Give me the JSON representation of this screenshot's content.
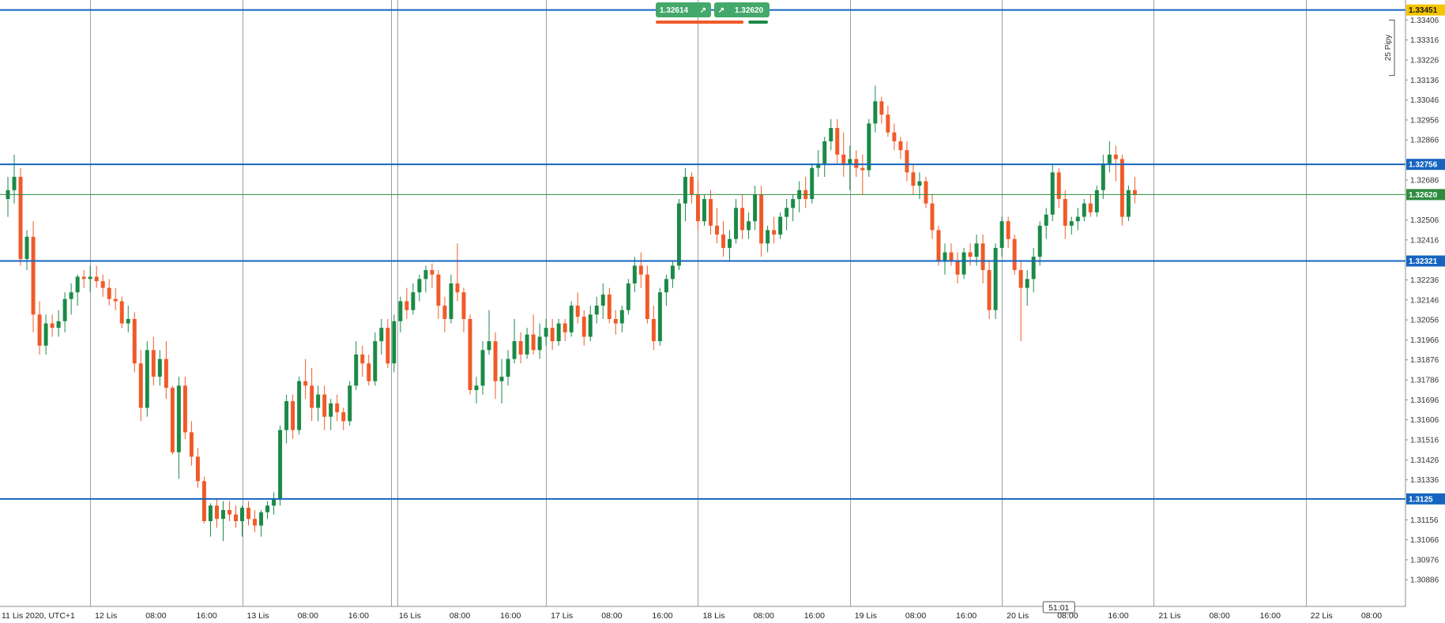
{
  "chart_data": {
    "type": "candlestick",
    "instrument_timezone_label": "11 Lis 2020, UTC+1",
    "y_axis": {
      "min": 1.30766,
      "max": 1.33496,
      "tick_labels": [
        "1.30886",
        "1.30976",
        "1.31066",
        "1.31156",
        "1.31336",
        "1.31426",
        "1.31516",
        "1.31606",
        "1.31696",
        "1.31786",
        "1.31876",
        "1.31966",
        "1.32056",
        "1.32146",
        "1.32236",
        "1.32416",
        "1.32506",
        "1.32686",
        "1.32866",
        "1.32956",
        "1.33046",
        "1.33136",
        "1.33226",
        "1.33316",
        "1.33406"
      ]
    },
    "x_axis": {
      "bars_per_hour": 1,
      "x_range_bars": [
        0,
        222
      ],
      "tick_labels": [
        {
          "bar": 0,
          "text": "11 Lis 2020, UTC+1"
        },
        {
          "bar": 13,
          "text": "12 Lis"
        },
        {
          "bar": 21,
          "text": "08:00"
        },
        {
          "bar": 29,
          "text": "16:00"
        },
        {
          "bar": 37,
          "text": "13 Lis"
        },
        {
          "bar": 45,
          "text": "08:00"
        },
        {
          "bar": 53,
          "text": "16:00"
        },
        {
          "bar": 61,
          "text": "16 Lis"
        },
        {
          "bar": 69,
          "text": "08:00"
        },
        {
          "bar": 77,
          "text": "16:00"
        },
        {
          "bar": 85,
          "text": "17 Lis"
        },
        {
          "bar": 93,
          "text": "08:00"
        },
        {
          "bar": 101,
          "text": "16:00"
        },
        {
          "bar": 109,
          "text": "18 Lis"
        },
        {
          "bar": 117,
          "text": "08:00"
        },
        {
          "bar": 125,
          "text": "16:00"
        },
        {
          "bar": 133,
          "text": "19 Lis"
        },
        {
          "bar": 141,
          "text": "08:00"
        },
        {
          "bar": 149,
          "text": "16:00"
        },
        {
          "bar": 157,
          "text": "20 Lis"
        },
        {
          "bar": 165,
          "text": "08:00"
        },
        {
          "bar": 173,
          "text": "16:00"
        },
        {
          "bar": 181,
          "text": "21 Lis"
        },
        {
          "bar": 189,
          "text": "08:00"
        },
        {
          "bar": 197,
          "text": "16:00"
        },
        {
          "bar": 205,
          "text": "22 Lis"
        },
        {
          "bar": 213,
          "text": "08:00"
        }
      ],
      "day_separators": [
        13,
        37,
        60.5,
        61.5,
        85,
        109,
        133,
        157,
        181,
        205
      ]
    },
    "horizontal_lines": [
      {
        "price": 1.33451,
        "label": "1.33451",
        "color": "#1565c0",
        "tag_bg": "#f5c400",
        "tag_fg": "#1a1a1a"
      },
      {
        "price": 1.32756,
        "label": "1.32756",
        "color": "#1565c0",
        "tag_bg": "#1565c0",
        "tag_fg": "#ffffff"
      },
      {
        "price": 1.32321,
        "label": "1.32321",
        "color": "#1565c0",
        "tag_bg": "#1565c0",
        "tag_fg": "#ffffff"
      },
      {
        "price": 1.3125,
        "label": "1.3125",
        "color": "#1565c0",
        "tag_bg": "#1565c0",
        "tag_fg": "#ffffff"
      }
    ],
    "current_price": {
      "price": 1.3262,
      "label": "1.32620",
      "color": "#2e8b3e"
    },
    "countdown_label": "51:01",
    "countdown_bar": 166,
    "pip_ruler": {
      "label": "25 Pipy",
      "price_top": 1.33406,
      "price_bottom": 1.33156
    },
    "colors": {
      "up": "#1a8a47",
      "down": "#f05a28",
      "grid": "#9e9e9e",
      "axis_bg": "#ffffff"
    },
    "candles": [
      [
        1.326,
        1.327,
        1.3252,
        1.3264
      ],
      [
        1.3264,
        1.328,
        1.3258,
        1.327
      ],
      [
        1.327,
        1.3274,
        1.323,
        1.3233
      ],
      [
        1.3233,
        1.3246,
        1.3228,
        1.3243
      ],
      [
        1.3243,
        1.325,
        1.32,
        1.3208
      ],
      [
        1.3208,
        1.3214,
        1.319,
        1.3194
      ],
      [
        1.3194,
        1.3208,
        1.319,
        1.3204
      ],
      [
        1.3204,
        1.3208,
        1.3198,
        1.3202
      ],
      [
        1.3202,
        1.321,
        1.3198,
        1.3205
      ],
      [
        1.3205,
        1.3218,
        1.32,
        1.3215
      ],
      [
        1.3215,
        1.3222,
        1.3208,
        1.3218
      ],
      [
        1.3218,
        1.3226,
        1.3212,
        1.3225
      ],
      [
        1.3225,
        1.3228,
        1.322,
        1.3224
      ],
      [
        1.3224,
        1.323,
        1.3218,
        1.3225
      ],
      [
        1.3225,
        1.323,
        1.322,
        1.3223
      ],
      [
        1.3223,
        1.3226,
        1.3216,
        1.322
      ],
      [
        1.322,
        1.3224,
        1.3212,
        1.3215
      ],
      [
        1.3215,
        1.322,
        1.321,
        1.3214
      ],
      [
        1.3214,
        1.3216,
        1.3202,
        1.3204
      ],
      [
        1.3204,
        1.3212,
        1.32,
        1.3206
      ],
      [
        1.3206,
        1.3209,
        1.3182,
        1.3186
      ],
      [
        1.3186,
        1.3192,
        1.316,
        1.3166
      ],
      [
        1.3166,
        1.3196,
        1.3162,
        1.3192
      ],
      [
        1.3192,
        1.3198,
        1.3176,
        1.318
      ],
      [
        1.318,
        1.3192,
        1.3176,
        1.3188
      ],
      [
        1.3188,
        1.3196,
        1.317,
        1.3175
      ],
      [
        1.3175,
        1.3176,
        1.3145,
        1.3146
      ],
      [
        1.3146,
        1.318,
        1.3134,
        1.3176
      ],
      [
        1.3176,
        1.318,
        1.3152,
        1.3155
      ],
      [
        1.3155,
        1.316,
        1.314,
        1.3144
      ],
      [
        1.3144,
        1.3148,
        1.313,
        1.3133
      ],
      [
        1.3133,
        1.3135,
        1.3114,
        1.3115
      ],
      [
        1.3115,
        1.3123,
        1.3108,
        1.3122
      ],
      [
        1.3122,
        1.3125,
        1.3112,
        1.3116
      ],
      [
        1.3116,
        1.3124,
        1.3106,
        1.312
      ],
      [
        1.312,
        1.3124,
        1.3115,
        1.3118
      ],
      [
        1.3118,
        1.3122,
        1.3112,
        1.3115
      ],
      [
        1.3115,
        1.3122,
        1.3108,
        1.3121
      ],
      [
        1.3121,
        1.3124,
        1.3113,
        1.3116
      ],
      [
        1.3116,
        1.312,
        1.311,
        1.3113
      ],
      [
        1.3113,
        1.312,
        1.3108,
        1.3119
      ],
      [
        1.3119,
        1.3124,
        1.3116,
        1.3122
      ],
      [
        1.3122,
        1.3128,
        1.3118,
        1.3125
      ],
      [
        1.3125,
        1.3158,
        1.3122,
        1.3156
      ],
      [
        1.3156,
        1.3172,
        1.315,
        1.3169
      ],
      [
        1.3169,
        1.3172,
        1.3152,
        1.3156
      ],
      [
        1.3156,
        1.318,
        1.3154,
        1.3178
      ],
      [
        1.3178,
        1.3188,
        1.317,
        1.3176
      ],
      [
        1.3176,
        1.3184,
        1.316,
        1.3166
      ],
      [
        1.3166,
        1.3176,
        1.316,
        1.3172
      ],
      [
        1.3172,
        1.3176,
        1.3156,
        1.3162
      ],
      [
        1.3162,
        1.317,
        1.3156,
        1.3168
      ],
      [
        1.3168,
        1.3172,
        1.316,
        1.3164
      ],
      [
        1.3164,
        1.3166,
        1.3156,
        1.316
      ],
      [
        1.316,
        1.3178,
        1.3158,
        1.3176
      ],
      [
        1.3176,
        1.3196,
        1.3174,
        1.319
      ],
      [
        1.319,
        1.3194,
        1.318,
        1.3186
      ],
      [
        1.3186,
        1.319,
        1.3176,
        1.3178
      ],
      [
        1.3178,
        1.32,
        1.3176,
        1.3196
      ],
      [
        1.3196,
        1.3206,
        1.319,
        1.3202
      ],
      [
        1.3202,
        1.3206,
        1.3184,
        1.3186
      ],
      [
        1.3186,
        1.3208,
        1.3182,
        1.3205
      ],
      [
        1.3205,
        1.3216,
        1.32,
        1.3214
      ],
      [
        1.3214,
        1.322,
        1.3206,
        1.321
      ],
      [
        1.321,
        1.3222,
        1.3208,
        1.3218
      ],
      [
        1.3218,
        1.3226,
        1.3214,
        1.3224
      ],
      [
        1.3224,
        1.323,
        1.3218,
        1.3228
      ],
      [
        1.3228,
        1.3231,
        1.322,
        1.3226
      ],
      [
        1.3226,
        1.3228,
        1.3206,
        1.3212
      ],
      [
        1.3212,
        1.3216,
        1.32,
        1.3206
      ],
      [
        1.3206,
        1.3226,
        1.3204,
        1.3222
      ],
      [
        1.3222,
        1.324,
        1.3214,
        1.3218
      ],
      [
        1.3218,
        1.322,
        1.32,
        1.3206
      ],
      [
        1.3206,
        1.3208,
        1.3172,
        1.3174
      ],
      [
        1.3174,
        1.318,
        1.3168,
        1.3176
      ],
      [
        1.3176,
        1.3196,
        1.3172,
        1.3192
      ],
      [
        1.3192,
        1.321,
        1.319,
        1.3196
      ],
      [
        1.3196,
        1.32,
        1.317,
        1.3178
      ],
      [
        1.3178,
        1.3188,
        1.3168,
        1.318
      ],
      [
        1.318,
        1.3192,
        1.3176,
        1.3188
      ],
      [
        1.3188,
        1.3206,
        1.3186,
        1.3196
      ],
      [
        1.3196,
        1.32,
        1.3186,
        1.319
      ],
      [
        1.319,
        1.3202,
        1.3188,
        1.3199
      ],
      [
        1.3199,
        1.3208,
        1.319,
        1.3192
      ],
      [
        1.3192,
        1.3204,
        1.3188,
        1.3198
      ],
      [
        1.3198,
        1.3206,
        1.3194,
        1.3202
      ],
      [
        1.3202,
        1.3206,
        1.3192,
        1.3196
      ],
      [
        1.3196,
        1.3206,
        1.3194,
        1.3204
      ],
      [
        1.3204,
        1.3206,
        1.3196,
        1.32
      ],
      [
        1.32,
        1.3214,
        1.3198,
        1.3212
      ],
      [
        1.3212,
        1.3218,
        1.3204,
        1.3207
      ],
      [
        1.3207,
        1.321,
        1.3194,
        1.3198
      ],
      [
        1.3198,
        1.3212,
        1.3196,
        1.3208
      ],
      [
        1.3208,
        1.3216,
        1.3204,
        1.3212
      ],
      [
        1.3212,
        1.3222,
        1.3206,
        1.3217
      ],
      [
        1.3217,
        1.322,
        1.3204,
        1.3206
      ],
      [
        1.3206,
        1.321,
        1.3199,
        1.3204
      ],
      [
        1.3204,
        1.3212,
        1.32,
        1.321
      ],
      [
        1.321,
        1.3224,
        1.3208,
        1.3222
      ],
      [
        1.3222,
        1.3234,
        1.3218,
        1.323
      ],
      [
        1.323,
        1.3236,
        1.322,
        1.3226
      ],
      [
        1.3226,
        1.323,
        1.3204,
        1.3206
      ],
      [
        1.3206,
        1.3212,
        1.3192,
        1.3196
      ],
      [
        1.3196,
        1.322,
        1.3194,
        1.3218
      ],
      [
        1.3218,
        1.3226,
        1.3212,
        1.3224
      ],
      [
        1.3224,
        1.3232,
        1.322,
        1.323
      ],
      [
        1.323,
        1.326,
        1.3228,
        1.3258
      ],
      [
        1.3258,
        1.3274,
        1.325,
        1.327
      ],
      [
        1.327,
        1.3272,
        1.3258,
        1.3262
      ],
      [
        1.3262,
        1.3268,
        1.3246,
        1.325
      ],
      [
        1.325,
        1.3262,
        1.3248,
        1.326
      ],
      [
        1.326,
        1.3264,
        1.3244,
        1.3248
      ],
      [
        1.3248,
        1.3256,
        1.324,
        1.3244
      ],
      [
        1.3244,
        1.325,
        1.3234,
        1.3238
      ],
      [
        1.3238,
        1.3246,
        1.3232,
        1.3242
      ],
      [
        1.3242,
        1.326,
        1.324,
        1.3256
      ],
      [
        1.3256,
        1.3262,
        1.3242,
        1.3246
      ],
      [
        1.3246,
        1.3254,
        1.3242,
        1.325
      ],
      [
        1.325,
        1.3266,
        1.3246,
        1.3262
      ],
      [
        1.3262,
        1.3266,
        1.3234,
        1.324
      ],
      [
        1.324,
        1.3248,
        1.3236,
        1.3246
      ],
      [
        1.3246,
        1.3252,
        1.324,
        1.3244
      ],
      [
        1.3244,
        1.3254,
        1.3242,
        1.3252
      ],
      [
        1.3252,
        1.326,
        1.3246,
        1.3256
      ],
      [
        1.3256,
        1.3262,
        1.325,
        1.326
      ],
      [
        1.326,
        1.3268,
        1.3254,
        1.3264
      ],
      [
        1.3264,
        1.327,
        1.3256,
        1.326
      ],
      [
        1.326,
        1.3276,
        1.3258,
        1.3274
      ],
      [
        1.3274,
        1.3282,
        1.327,
        1.3276
      ],
      [
        1.3276,
        1.3288,
        1.327,
        1.3286
      ],
      [
        1.3286,
        1.3296,
        1.3282,
        1.3292
      ],
      [
        1.3292,
        1.3296,
        1.3276,
        1.328
      ],
      [
        1.328,
        1.329,
        1.327,
        1.3276
      ],
      [
        1.3276,
        1.3284,
        1.3264,
        1.3278
      ],
      [
        1.3278,
        1.3282,
        1.327,
        1.3274
      ],
      [
        1.3274,
        1.328,
        1.3262,
        1.3273
      ],
      [
        1.3273,
        1.3296,
        1.327,
        1.3294
      ],
      [
        1.3294,
        1.3311,
        1.329,
        1.3304
      ],
      [
        1.3304,
        1.3306,
        1.3294,
        1.3298
      ],
      [
        1.3298,
        1.3302,
        1.3288,
        1.329
      ],
      [
        1.329,
        1.3294,
        1.3282,
        1.3286
      ],
      [
        1.3286,
        1.3288,
        1.3278,
        1.3282
      ],
      [
        1.3282,
        1.3286,
        1.3268,
        1.3272
      ],
      [
        1.3272,
        1.3276,
        1.3262,
        1.3266
      ],
      [
        1.3266,
        1.3272,
        1.326,
        1.3268
      ],
      [
        1.3268,
        1.327,
        1.3256,
        1.3258
      ],
      [
        1.3258,
        1.3262,
        1.3242,
        1.3246
      ],
      [
        1.3246,
        1.3248,
        1.323,
        1.3232
      ],
      [
        1.3232,
        1.324,
        1.3226,
        1.3236
      ],
      [
        1.3236,
        1.324,
        1.323,
        1.3232
      ],
      [
        1.3232,
        1.3236,
        1.3222,
        1.3226
      ],
      [
        1.3226,
        1.3238,
        1.3224,
        1.3236
      ],
      [
        1.3236,
        1.324,
        1.323,
        1.3234
      ],
      [
        1.3234,
        1.3244,
        1.323,
        1.324
      ],
      [
        1.324,
        1.3244,
        1.3222,
        1.3228
      ],
      [
        1.3228,
        1.3232,
        1.3206,
        1.321
      ],
      [
        1.321,
        1.324,
        1.3206,
        1.3238
      ],
      [
        1.3238,
        1.3252,
        1.3234,
        1.325
      ],
      [
        1.325,
        1.3252,
        1.3238,
        1.3242
      ],
      [
        1.3242,
        1.3244,
        1.3226,
        1.3228
      ],
      [
        1.3228,
        1.3232,
        1.3196,
        1.322
      ],
      [
        1.322,
        1.3228,
        1.3212,
        1.3224
      ],
      [
        1.3224,
        1.3238,
        1.3218,
        1.3234
      ],
      [
        1.3234,
        1.325,
        1.323,
        1.3248
      ],
      [
        1.3248,
        1.3256,
        1.3242,
        1.3253
      ],
      [
        1.3253,
        1.3276,
        1.325,
        1.3272
      ],
      [
        1.3272,
        1.3274,
        1.3256,
        1.326
      ],
      [
        1.326,
        1.3264,
        1.3242,
        1.3248
      ],
      [
        1.3248,
        1.3252,
        1.3244,
        1.325
      ],
      [
        1.325,
        1.3256,
        1.3246,
        1.3252
      ],
      [
        1.3252,
        1.326,
        1.325,
        1.3258
      ],
      [
        1.3258,
        1.3262,
        1.3252,
        1.3254
      ],
      [
        1.3254,
        1.3266,
        1.3252,
        1.3264
      ],
      [
        1.3264,
        1.328,
        1.326,
        1.3276
      ],
      [
        1.3276,
        1.3286,
        1.3272,
        1.328
      ],
      [
        1.328,
        1.3284,
        1.3268,
        1.3278
      ],
      [
        1.3278,
        1.328,
        1.3248,
        1.3252
      ],
      [
        1.3252,
        1.3266,
        1.325,
        1.3264
      ],
      [
        1.3264,
        1.327,
        1.3258,
        1.3262
      ]
    ]
  },
  "price_widget": {
    "bid": "1.32614",
    "ask": "1.32620",
    "arrow": "↗",
    "bid_color": "#44a86a",
    "ask_color": "#44a86a",
    "bid_bar_color": "#f05a28",
    "ask_bar_color": "#1a8a47",
    "bid_bar_fraction": 0.8,
    "ask_bar_fraction": 0.2
  }
}
